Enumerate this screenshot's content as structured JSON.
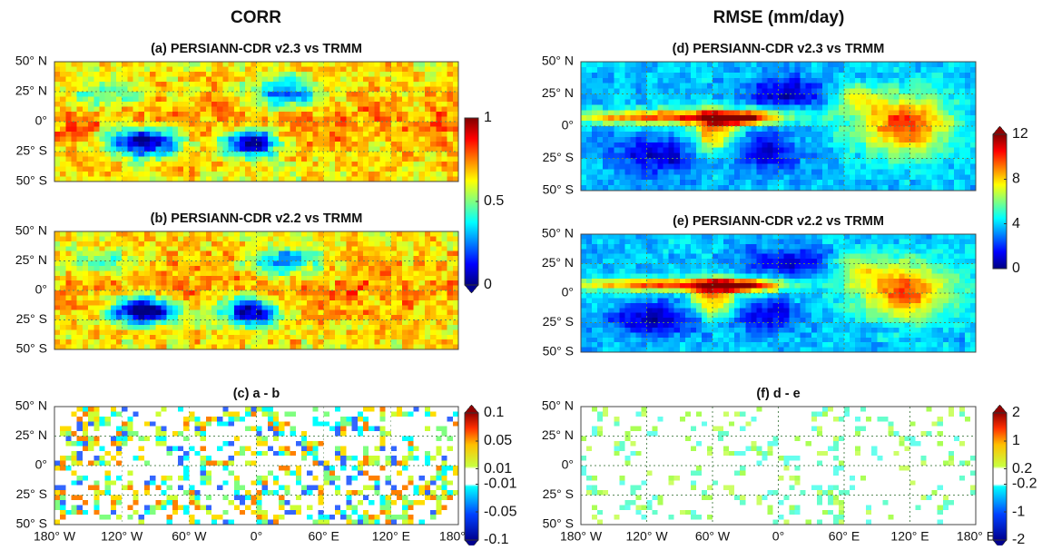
{
  "columns": [
    {
      "title": "CORR"
    },
    {
      "title": "RMSE (mm/day)"
    }
  ],
  "panels": [
    {
      "title": "(a) PERSIANN-CDR v2.3 vs TRMM"
    },
    {
      "title": "(b) PERSIANN-CDR v2.2 vs TRMM"
    },
    {
      "title": "(c) a - b"
    },
    {
      "title": "(d) PERSIANN-CDR v2.3 vs TRMM"
    },
    {
      "title": "(e) PERSIANN-CDR v2.2 vs TRMM"
    },
    {
      "title": "(f) d - e"
    }
  ],
  "lat_labels": [
    "50° N",
    "25° N",
    "0°",
    "25° S",
    "50° S"
  ],
  "lon_labels": [
    "180° W",
    "120° W",
    "60° W",
    "0°",
    "60° E",
    "120° E",
    "180° E"
  ],
  "colorbars": [
    {
      "ticks": [
        "1",
        "0.5",
        "0"
      ]
    },
    {
      "ticks": [
        "12",
        "8",
        "4",
        "0"
      ]
    },
    {
      "ticks": [
        "0.1",
        "0.05",
        "0.01",
        "-0.01",
        "-0.05",
        "-0.1"
      ]
    },
    {
      "ticks": [
        "2",
        "1",
        "0.2",
        "-0.2",
        "-1",
        "-2"
      ]
    }
  ]
}
